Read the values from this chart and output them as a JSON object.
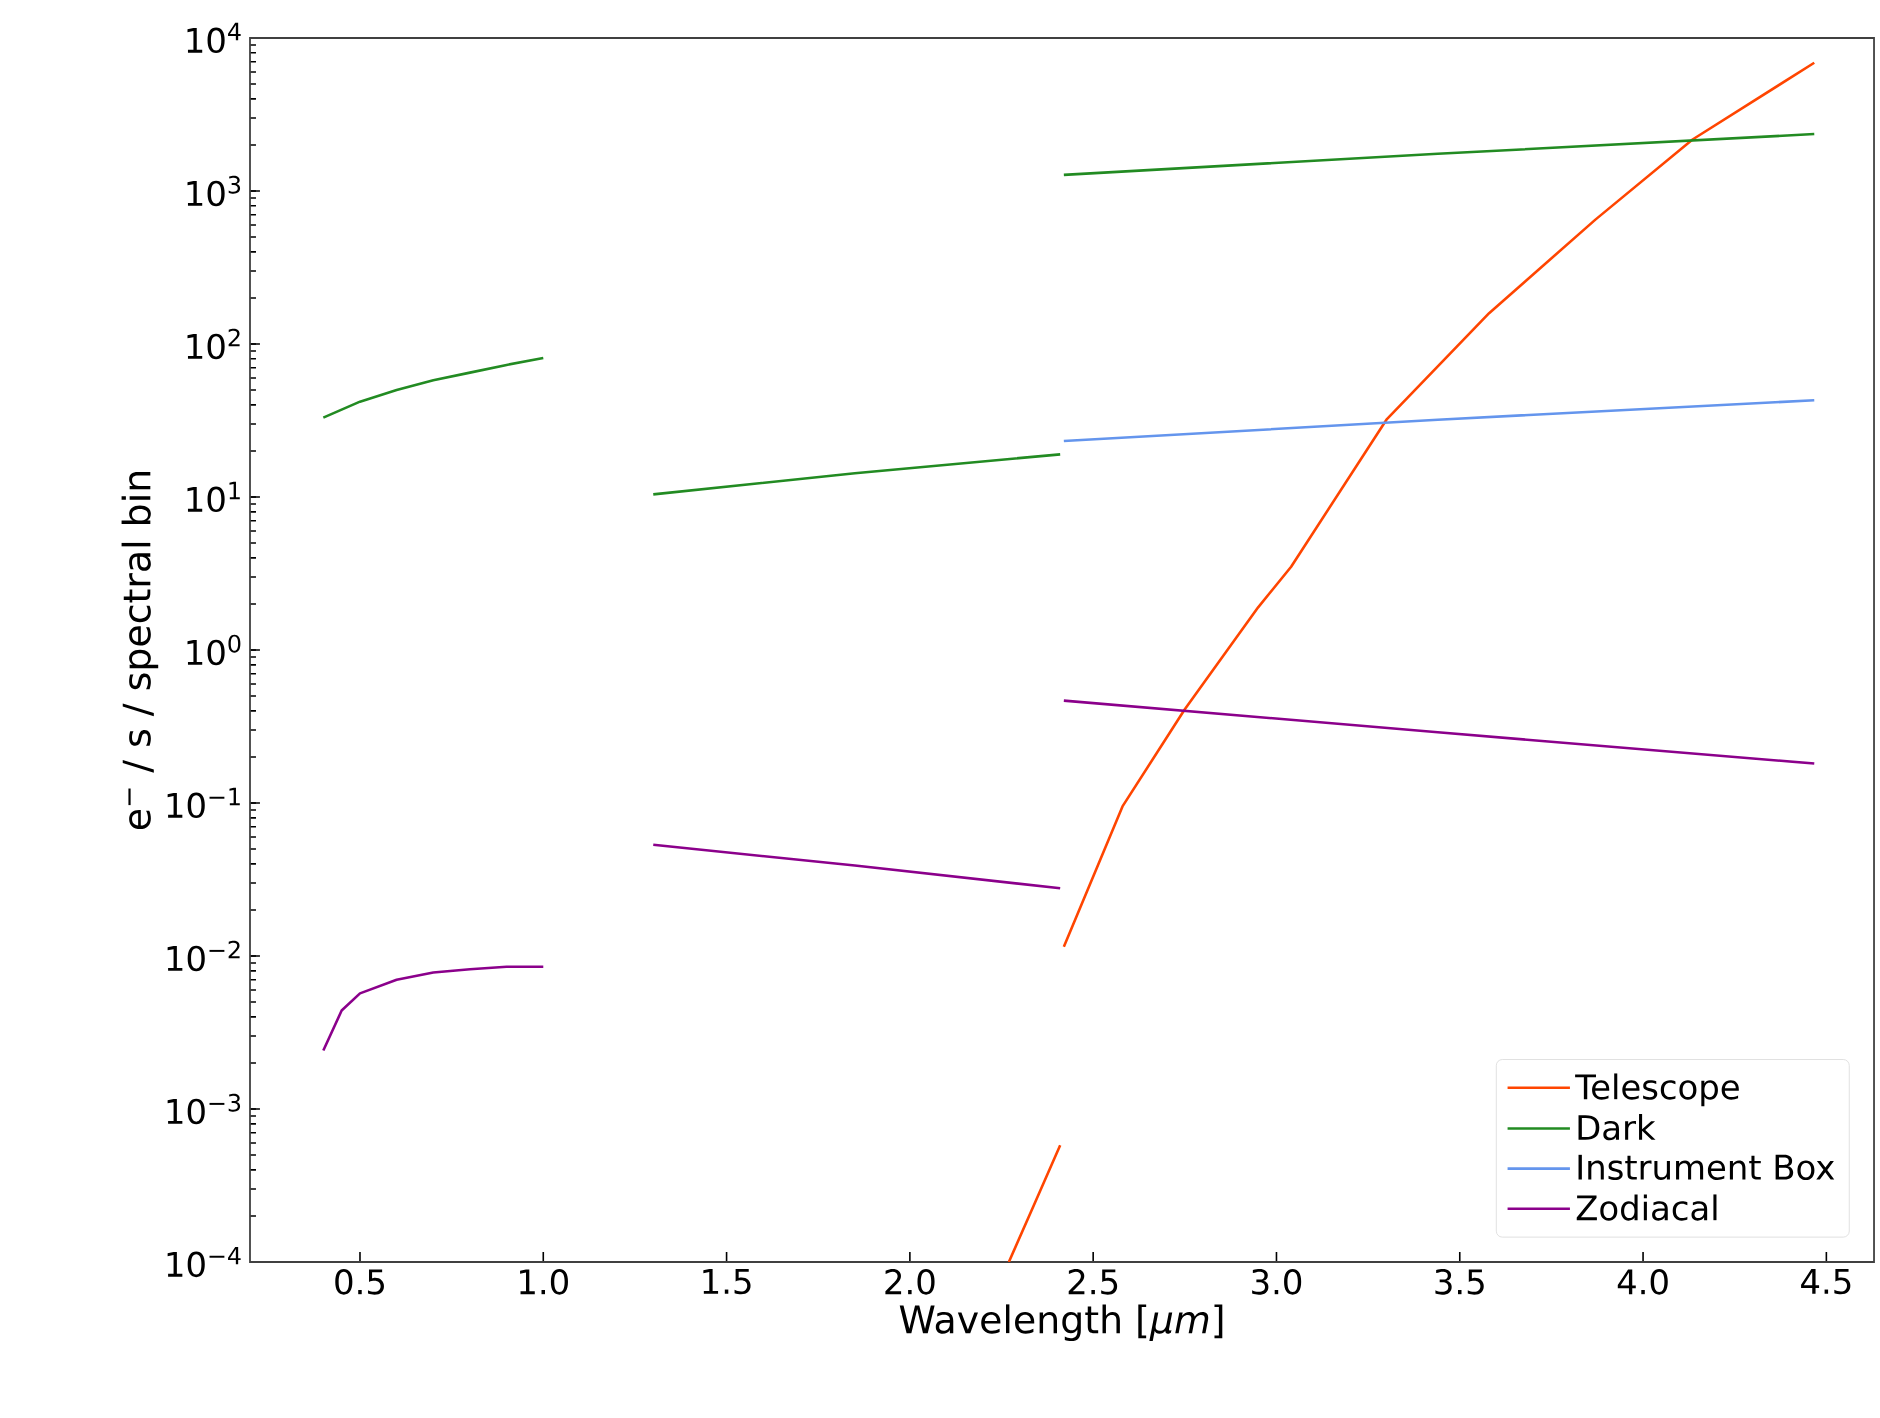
{
  "chart_data": {
    "type": "line",
    "xlabel": "Wavelength [*μm*]",
    "ylabel": "e$^{−}$ / s / spectral bin",
    "log": "y",
    "grid": false,
    "legend": "bottom right",
    "marker": "none",
    "line_style": "solid",
    "xlim": [
      0.2,
      4.63
    ],
    "ylim": [
      0.0001,
      10000
    ],
    "xticks": [
      {
        "value": 0.5,
        "label": "0.5"
      },
      {
        "value": 1,
        "label": "1.0"
      },
      {
        "value": 1.5,
        "label": "1.5"
      },
      {
        "value": 2,
        "label": "2.0"
      },
      {
        "value": 2.5,
        "label": "2.5"
      },
      {
        "value": 3,
        "label": "3.0"
      },
      {
        "value": 3.5,
        "label": "3.5"
      },
      {
        "value": 4,
        "label": "4.0"
      },
      {
        "value": 4.5,
        "label": "4.5"
      }
    ],
    "yticks": [
      {
        "value": 0.0001,
        "label": "10$^{−4}$"
      },
      {
        "value": 0.001,
        "label": "10$^{−3}$"
      },
      {
        "value": 0.01,
        "label": "10$^{−2}$"
      },
      {
        "value": 0.1,
        "label": "10$^{−1}$"
      },
      {
        "value": 1,
        "label": "10$^{0}$"
      },
      {
        "value": 10,
        "label": "10$^{1}$"
      },
      {
        "value": 100,
        "label": "10$^{2}$"
      },
      {
        "value": 1000,
        "label": "10$^{3}$"
      },
      {
        "value": 10000,
        "label": "10$^{4}$"
      }
    ],
    "series": [
      {
        "name": "Telescope",
        "color": "#ff4500",
        "x": [
          2.27,
          2.34,
          2.41,
          2.415,
          2.42,
          2.58,
          2.75,
          2.95,
          3.04,
          3.3,
          3.58,
          3.87,
          4.135,
          4.467
        ],
        "values": [
          0.0001,
          0.00024,
          0.00058,
          null,
          0.0115,
          0.095,
          0.41,
          1.9,
          3.5,
          32,
          159,
          650,
          2170,
          6890
        ]
      },
      {
        "name": "Dark",
        "color": "#228b22",
        "x": [
          0.4,
          0.5,
          0.6,
          0.7,
          0.8,
          0.9,
          1.0,
          1.15,
          1.3,
          1.85,
          2.41,
          2.415,
          2.42,
          3.44,
          4.467
        ],
        "values": [
          33,
          42,
          50,
          58,
          65,
          73,
          81,
          null,
          10.4,
          14.3,
          19,
          null,
          1275,
          1750,
          2355
        ]
      },
      {
        "name": "Instrument Box",
        "color": "#6495ed",
        "x": [
          2.42,
          3.44,
          4.467
        ],
        "values": [
          23.2,
          32,
          42.9
        ]
      },
      {
        "name": "Zodiacal",
        "color": "#8b008b",
        "x": [
          0.4,
          0.45,
          0.5,
          0.6,
          0.7,
          0.8,
          0.9,
          1.0,
          1.15,
          1.3,
          1.85,
          2.41,
          2.415,
          2.42,
          3.44,
          4.467
        ],
        "values": [
          0.00241,
          0.0044,
          0.0057,
          0.007,
          0.0078,
          0.0082,
          0.0085,
          0.0085,
          null,
          0.0533,
          0.039,
          0.0277,
          null,
          0.467,
          0.29,
          0.181
        ]
      }
    ]
  }
}
